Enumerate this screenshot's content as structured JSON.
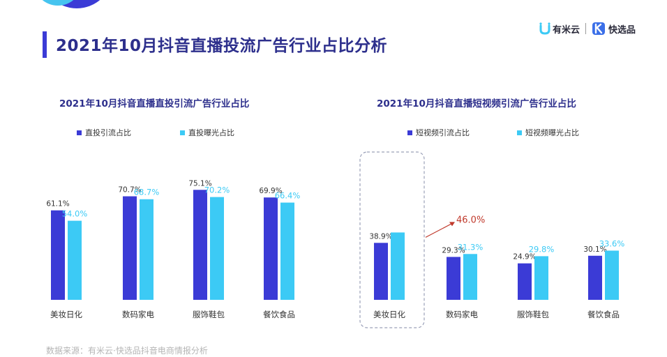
{
  "title": "2021年10月抖音直播投流广告行业占比分析",
  "brand": {
    "primary": "有米云",
    "secondary": "快选品"
  },
  "source": "数据来源：有米云·快选品抖音电商情报分析",
  "colors": {
    "dark": "#3b3bd6",
    "light": "#3ccaf5",
    "title": "#2d2f8c",
    "highlight": "#c0392b"
  },
  "chart_data": [
    {
      "type": "bar",
      "title": "2021年10月抖音直播直投引流广告行业占比",
      "categories": [
        "美妆日化",
        "数码家电",
        "服饰鞋包",
        "餐饮食品"
      ],
      "series": [
        {
          "name": "直投引流占比",
          "values": [
            61.1,
            70.7,
            75.1,
            69.9
          ],
          "labels": [
            "61.1%",
            "70.7%",
            "75.1%",
            "69.9%"
          ]
        },
        {
          "name": "直投曝光占比",
          "values": [
            54.0,
            68.7,
            70.2,
            66.4
          ],
          "labels": [
            "54.0%",
            "68.7%",
            "70.2%",
            "66.4%"
          ]
        }
      ],
      "ylim": [
        0,
        100
      ],
      "legend": "top",
      "grid": false
    },
    {
      "type": "bar",
      "title": "2021年10月抖音直播短视频引流广告行业占比",
      "categories": [
        "美妆日化",
        "数码家电",
        "服饰鞋包",
        "餐饮食品"
      ],
      "series": [
        {
          "name": "短视频引流占比",
          "values": [
            38.9,
            29.3,
            24.9,
            30.1
          ],
          "labels": [
            "38.9%",
            "29.3%",
            "24.9%",
            "30.1%"
          ]
        },
        {
          "name": "短视频曝光占比",
          "values": [
            46.0,
            31.3,
            29.8,
            33.6
          ],
          "labels": [
            "46.0%",
            "31.3%",
            "29.8%",
            "33.6%"
          ]
        }
      ],
      "ylim": [
        0,
        100
      ],
      "legend": "top",
      "grid": false,
      "highlight": {
        "category": "美妆日化",
        "series": "短视频曝光占比",
        "value": 46.0,
        "label": "46.0%"
      }
    }
  ]
}
